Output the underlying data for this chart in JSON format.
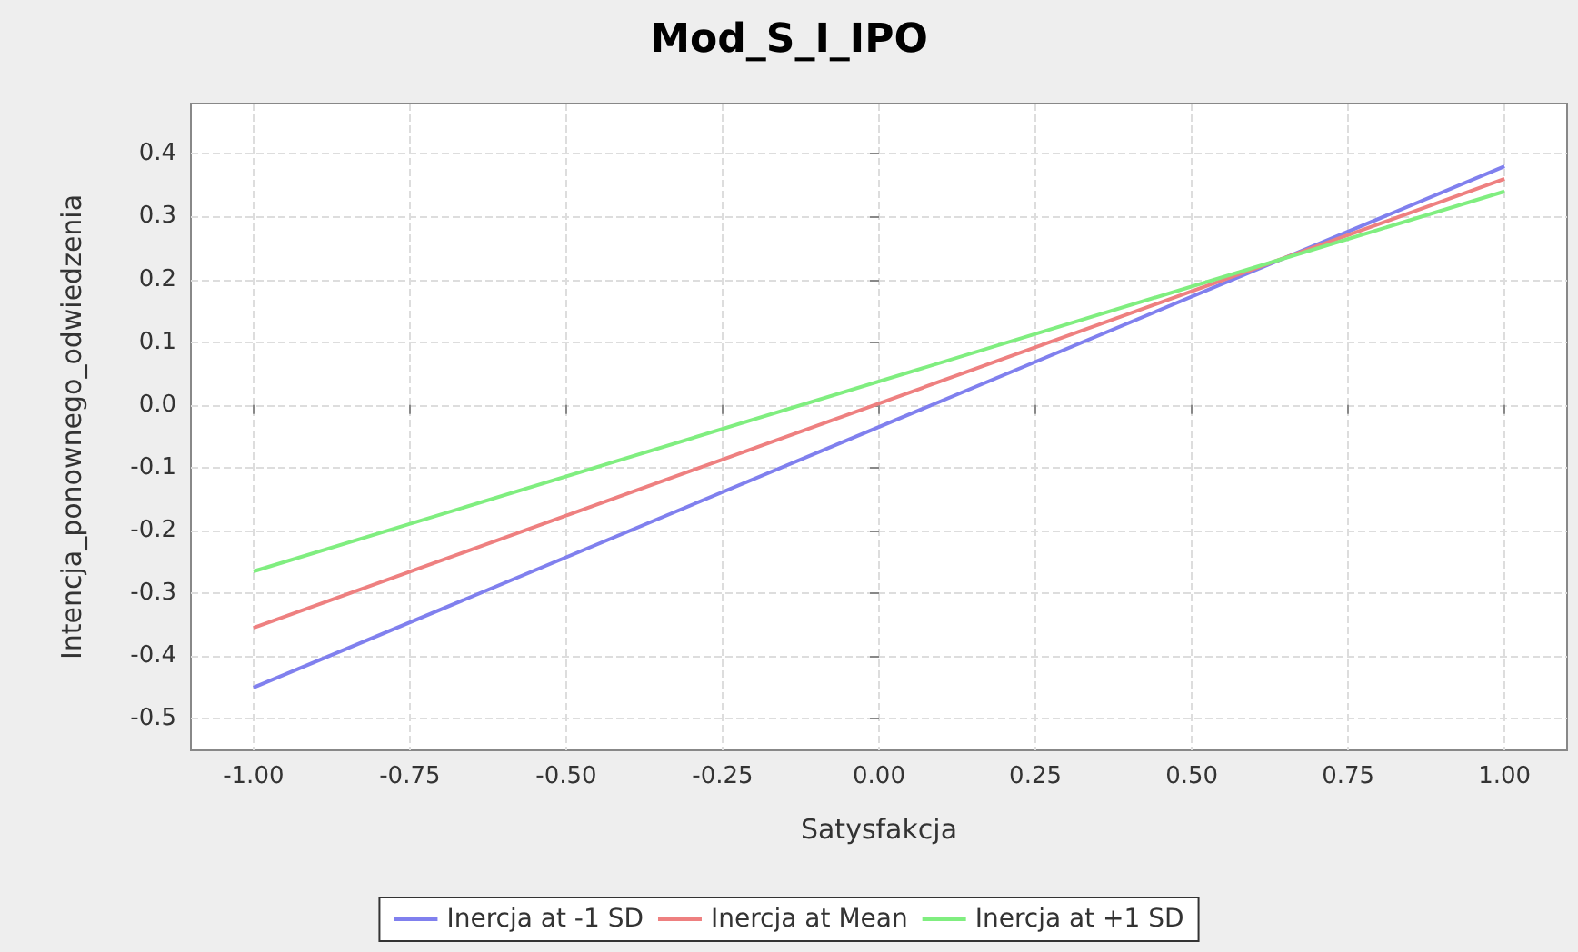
{
  "chart_data": {
    "type": "line",
    "title": "Mod_S_I_IPO",
    "xlabel": "Satysfakcja",
    "ylabel": "Intencja_ponownego_odwiedzenia",
    "x": [
      -1,
      1
    ],
    "series": [
      {
        "name": "Inercja at -1 SD",
        "color": "#8080ee",
        "values": [
          -0.45,
          0.38
        ]
      },
      {
        "name": "Inercja at Mean",
        "color": "#ee8080",
        "values": [
          -0.355,
          0.36
        ]
      },
      {
        "name": "Inercja at +1 SD",
        "color": "#80ee80",
        "values": [
          -0.265,
          0.34
        ]
      }
    ],
    "xlim": [
      -1.1,
      1.1
    ],
    "xticks": [
      {
        "value": -1,
        "label": "-1.00"
      },
      {
        "value": -0.75,
        "label": "-0.75"
      },
      {
        "value": -0.5,
        "label": "-0.50"
      },
      {
        "value": -0.25,
        "label": "-0.25"
      },
      {
        "value": 0,
        "label": "0.00"
      },
      {
        "value": 0.25,
        "label": "0.25"
      },
      {
        "value": 0.5,
        "label": "0.50"
      },
      {
        "value": 0.75,
        "label": "0.75"
      },
      {
        "value": 1,
        "label": "1.00"
      }
    ],
    "ylim": [
      -0.55,
      0.48
    ],
    "yticks": [
      {
        "value": -0.5,
        "label": "-0.5"
      },
      {
        "value": -0.4,
        "label": "-0.4"
      },
      {
        "value": -0.3,
        "label": "-0.3"
      },
      {
        "value": -0.2,
        "label": "-0.2"
      },
      {
        "value": -0.1,
        "label": "-0.1"
      },
      {
        "value": 0,
        "label": "0.0"
      },
      {
        "value": 0.1,
        "label": "0.1"
      },
      {
        "value": 0.2,
        "label": "0.2"
      },
      {
        "value": 0.3,
        "label": "0.3"
      },
      {
        "value": 0.4,
        "label": "0.4"
      }
    ],
    "grid": true,
    "legend": "bottom",
    "marker": "none",
    "line_style": "solid"
  }
}
